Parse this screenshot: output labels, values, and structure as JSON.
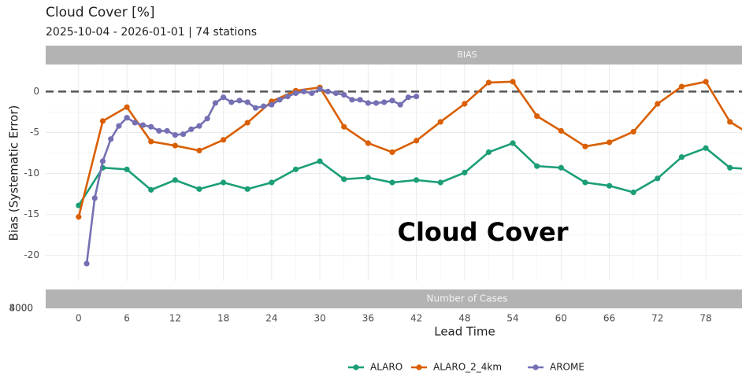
{
  "chart_data": {
    "type": "line",
    "title": "Cloud Cover [%]",
    "subtitle": "2025-10-04 - 2026-01-01 | 74 stations",
    "strip": "BIAS",
    "annotation": "Cloud Cover",
    "xlabel": "Lead Time",
    "ylabel": "Bias (Systematic Error)",
    "xlim": [
      -4.1,
      82.5
    ],
    "ylim": [
      -23.1,
      3.3
    ],
    "xticks": [
      0,
      6,
      12,
      18,
      24,
      30,
      36,
      42,
      48,
      54,
      60,
      66,
      72,
      78
    ],
    "yticks": [
      -20,
      -15,
      -10,
      -5,
      0
    ],
    "hline": 0,
    "grid": true,
    "legend": "bottom",
    "series": [
      {
        "name": "ALARO",
        "color": "#1b9e77",
        "x": [
          0,
          3,
          6,
          9,
          12,
          15,
          18,
          21,
          24,
          27,
          30,
          33,
          36,
          39,
          42,
          45,
          48,
          51,
          54,
          57,
          60,
          63,
          66,
          69,
          72,
          75,
          78,
          81,
          84
        ],
        "values": [
          -13.9,
          -9.3,
          -9.5,
          -12.0,
          -10.8,
          -11.9,
          -11.1,
          -11.9,
          -11.1,
          -9.5,
          -8.5,
          -10.7,
          -10.5,
          -11.1,
          -10.8,
          -11.1,
          -9.9,
          -7.4,
          -6.3,
          -9.1,
          -9.3,
          -11.1,
          -11.5,
          -12.3,
          -10.6,
          -8.0,
          -6.9,
          -9.3,
          -9.5
        ]
      },
      {
        "name": "ALARO_2_4km",
        "color": "#d95f02",
        "x": [
          0,
          3,
          6,
          9,
          12,
          15,
          18,
          21,
          24,
          27,
          30,
          33,
          36,
          39,
          42,
          45,
          48,
          51,
          54,
          57,
          60,
          63,
          66,
          69,
          72,
          75,
          78,
          81,
          84
        ],
        "values": [
          -15.3,
          -3.6,
          -1.9,
          -6.1,
          -6.6,
          -7.2,
          -5.9,
          -3.8,
          -1.2,
          0.1,
          0.5,
          -4.3,
          -6.3,
          -7.4,
          -6.0,
          -3.7,
          -1.5,
          1.1,
          1.2,
          -3.0,
          -4.8,
          -6.7,
          -6.2,
          -4.9,
          -1.5,
          0.6,
          1.2,
          -3.7,
          -5.5
        ]
      },
      {
        "name": "AROME",
        "color": "#7570b3",
        "x": [
          1,
          2,
          3,
          4,
          5,
          6,
          7,
          8,
          9,
          10,
          11,
          12,
          13,
          14,
          15,
          16,
          17,
          18,
          19,
          20,
          21,
          22,
          23,
          24,
          25,
          26,
          27,
          28,
          29,
          30,
          31,
          32,
          33,
          34,
          35,
          36,
          37,
          38,
          39,
          40,
          41,
          42
        ],
        "values": [
          -21.0,
          -13.0,
          -8.5,
          -5.8,
          -4.2,
          -3.2,
          -3.8,
          -4.1,
          -4.3,
          -4.8,
          -4.8,
          -5.3,
          -5.2,
          -4.6,
          -4.2,
          -3.3,
          -1.4,
          -0.7,
          -1.3,
          -1.1,
          -1.3,
          -2.0,
          -1.8,
          -1.6,
          -1.0,
          -0.6,
          -0.2,
          0.0,
          -0.2,
          0.3,
          0.0,
          -0.2,
          -0.4,
          -1.0,
          -1.0,
          -1.4,
          -1.4,
          -1.3,
          -1.1,
          -1.6,
          -0.7,
          -0.6
        ]
      }
    ],
    "cases_panel": {
      "strip": "Number of Cases",
      "yticks": [
        4000,
        8000
      ]
    }
  }
}
